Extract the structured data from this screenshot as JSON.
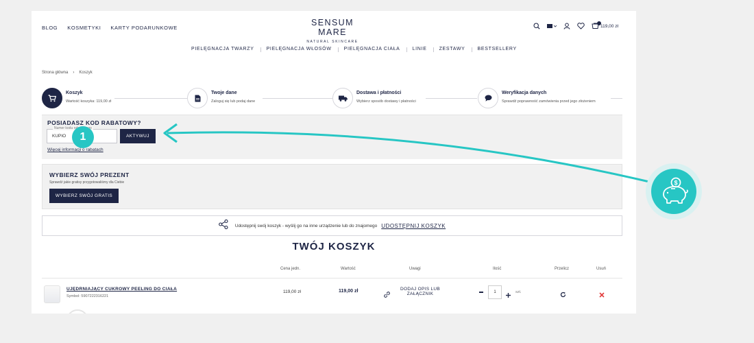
{
  "header": {
    "links": [
      "BLOG",
      "KOSMETYKI",
      "KARTY PODARUNKOWE"
    ],
    "logo_main": "SENSUM MARE",
    "logo_sub": "NATURAL SKINCARE",
    "cart_total": "119,00 zł",
    "cart_count": "1"
  },
  "mainnav": [
    "PIELĘGNACJA TWARZY",
    "PIELĘGNACJA WŁOSÓW",
    "PIELĘGNACJA CIAŁA",
    "LINIE",
    "ZESTAWY",
    "BESTSELLERY"
  ],
  "breadcrumb": [
    "Strona główna",
    "Koszyk"
  ],
  "steps": [
    {
      "title": "Koszyk",
      "desc": "Wartość koszyka: 119,00 zł",
      "icon": "cart-icon"
    },
    {
      "title": "Twoje dane",
      "desc": "Zaloguj się lub podaj dane",
      "icon": "document-icon"
    },
    {
      "title": "Dostawa i płatności",
      "desc": "Wybierz sposób dostawy i płatności",
      "icon": "truck-icon"
    },
    {
      "title": "Weryfikacja danych",
      "desc": "Sprawdź poprawność zamówienia przed jego złożeniem",
      "icon": "chat-bubble-icon"
    }
  ],
  "promo": {
    "heading": "POSIADASZ KOD RABATOWY?",
    "field_label": "Numer kodu rabatowego",
    "field_value": "KUPIO",
    "button": "AKTYWUJ",
    "more_link": "Więcej informacji o rabatach"
  },
  "gift": {
    "heading": "WYBIERZ SWÓJ PREZENT",
    "sub": "Sprawdź jakie gratisy przygotowaliśmy dla Ciebie",
    "button": "WYBIERZ SWÓJ GRATIS"
  },
  "share": {
    "text": "Udostępnij swój koszyk - wyślij go na inne urządzenie lub do znajomego",
    "link": "UDOSTĘPNIJ KOSZYK"
  },
  "cart": {
    "title": "TWÓJ KOSZYK",
    "columns": [
      "Cena jedn.",
      "Wartość",
      "Uwagi",
      "Ilość",
      "Przelicz",
      "Usuń"
    ],
    "item": {
      "name": "UJĘDRNIAJĄCY CUKROWY PEELING DO CIAŁA",
      "symbol": "Symbol: 5907222316221",
      "unit_price": "119,00 zł",
      "value": "119,00 zł",
      "note_line1": "DODAJ OPIS LUB",
      "note_line2": "ZAŁĄCZNIK",
      "qty": "1",
      "unit": "szt."
    }
  },
  "annotation": {
    "number": "1"
  },
  "colors": {
    "navy": "#1e2545",
    "teal": "#27c6c4"
  }
}
